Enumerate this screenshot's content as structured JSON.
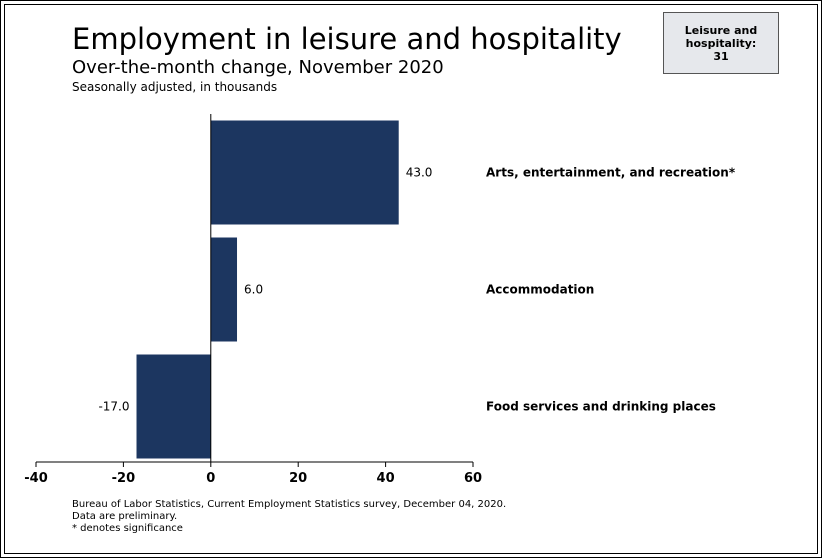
{
  "title": "Employment in leisure and hospitality",
  "subtitle": "Over-the-month change, November 2020",
  "unit_note": "Seasonally adjusted, in thousands",
  "callout": "Leisure and\nhospitality:\n31",
  "footer": {
    "source": "Bureau of Labor Statistics, Current Employment Statistics survey, December 04, 2020.",
    "note1": "Data are preliminary.",
    "note2": "* denotes significance"
  },
  "colors": {
    "bar": "#1c3660",
    "axis": "#000000"
  },
  "chart_data": {
    "type": "bar",
    "orientation": "horizontal",
    "title": "Employment in leisure and hospitality",
    "subtitle": "Over-the-month change, November 2020",
    "categories": [
      "Arts, entertainment, and recreation*",
      "Accommodation",
      "Food services and drinking places"
    ],
    "values": [
      43.0,
      6.0,
      -17.0
    ],
    "value_labels": [
      "43.0",
      "6.0",
      "-17.0"
    ],
    "xlim": [
      -40,
      60
    ],
    "xticks": [
      -40,
      -20,
      0,
      20,
      40,
      60
    ],
    "grid": false,
    "legend": "none"
  }
}
